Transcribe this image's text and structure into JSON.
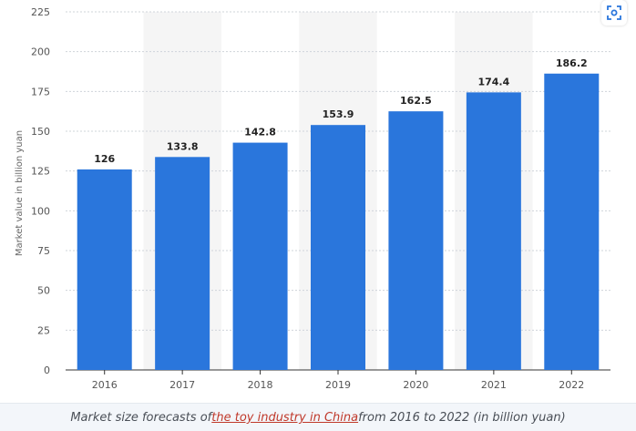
{
  "chart_data": {
    "type": "bar",
    "categories": [
      "2016",
      "2017",
      "2018",
      "2019",
      "2020",
      "2021",
      "2022"
    ],
    "values": [
      126,
      133.8,
      142.8,
      153.9,
      162.5,
      174.4,
      186.2
    ],
    "value_labels": [
      "126",
      "133.8",
      "142.8",
      "153.9",
      "162.5",
      "174.4",
      "186.2"
    ],
    "ylabel": "Market value in billion yuan",
    "xlabel": "",
    "ylim": [
      0,
      225
    ],
    "yticks": [
      0,
      25,
      50,
      75,
      100,
      125,
      150,
      175,
      200,
      225
    ],
    "grid": true,
    "bar_color": "#2a76dc",
    "band_color": "#f5f5f5",
    "gridline_color": "#cfd4da"
  },
  "caption": {
    "prefix": "Market size forecasts of ",
    "link_text": "the toy industry in China",
    "suffix": " from 2016 to 2022 (in billion yuan)"
  },
  "toolbar": {
    "expand_icon": "expand-icon",
    "accent_color": "#2a76dc"
  }
}
